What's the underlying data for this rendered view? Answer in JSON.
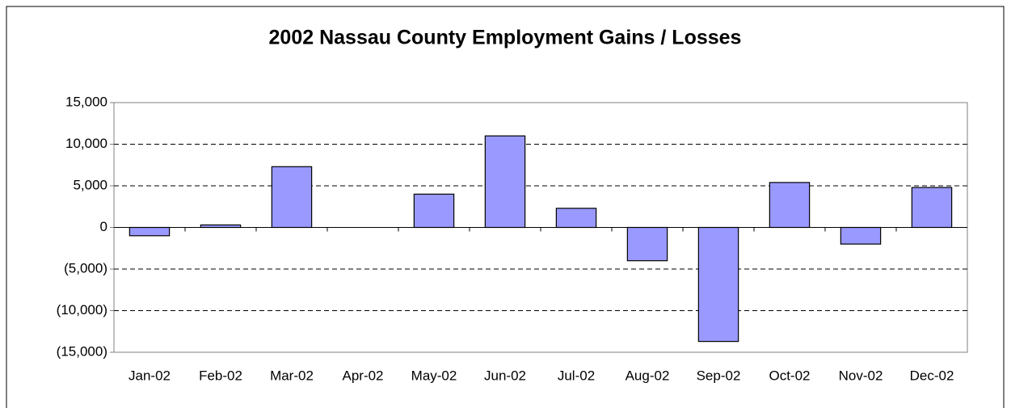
{
  "chart_data": {
    "type": "bar",
    "title": "2002 Nassau County Employment Gains / Losses",
    "categories": [
      "Jan-02",
      "Feb-02",
      "Mar-02",
      "Apr-02",
      "May-02",
      "Jun-02",
      "Jul-02",
      "Aug-02",
      "Sep-02",
      "Oct-02",
      "Nov-02",
      "Dec-02"
    ],
    "values": [
      -1000,
      300,
      7300,
      0,
      4000,
      11000,
      2300,
      -4000,
      -13700,
      5400,
      -2000,
      4800
    ],
    "color": "#9999ff",
    "ylim": [
      -15000,
      15000
    ],
    "yticks": [
      {
        "value": -15000,
        "label": "(15,000)"
      },
      {
        "value": -10000,
        "label": "(10,000)"
      },
      {
        "value": -5000,
        "label": "(5,000)"
      },
      0,
      {
        "value": 5000,
        "label": "5,000"
      },
      {
        "value": 10000,
        "label": "10,000"
      },
      {
        "value": 15000,
        "label": "15,000"
      }
    ],
    "grid": true
  }
}
